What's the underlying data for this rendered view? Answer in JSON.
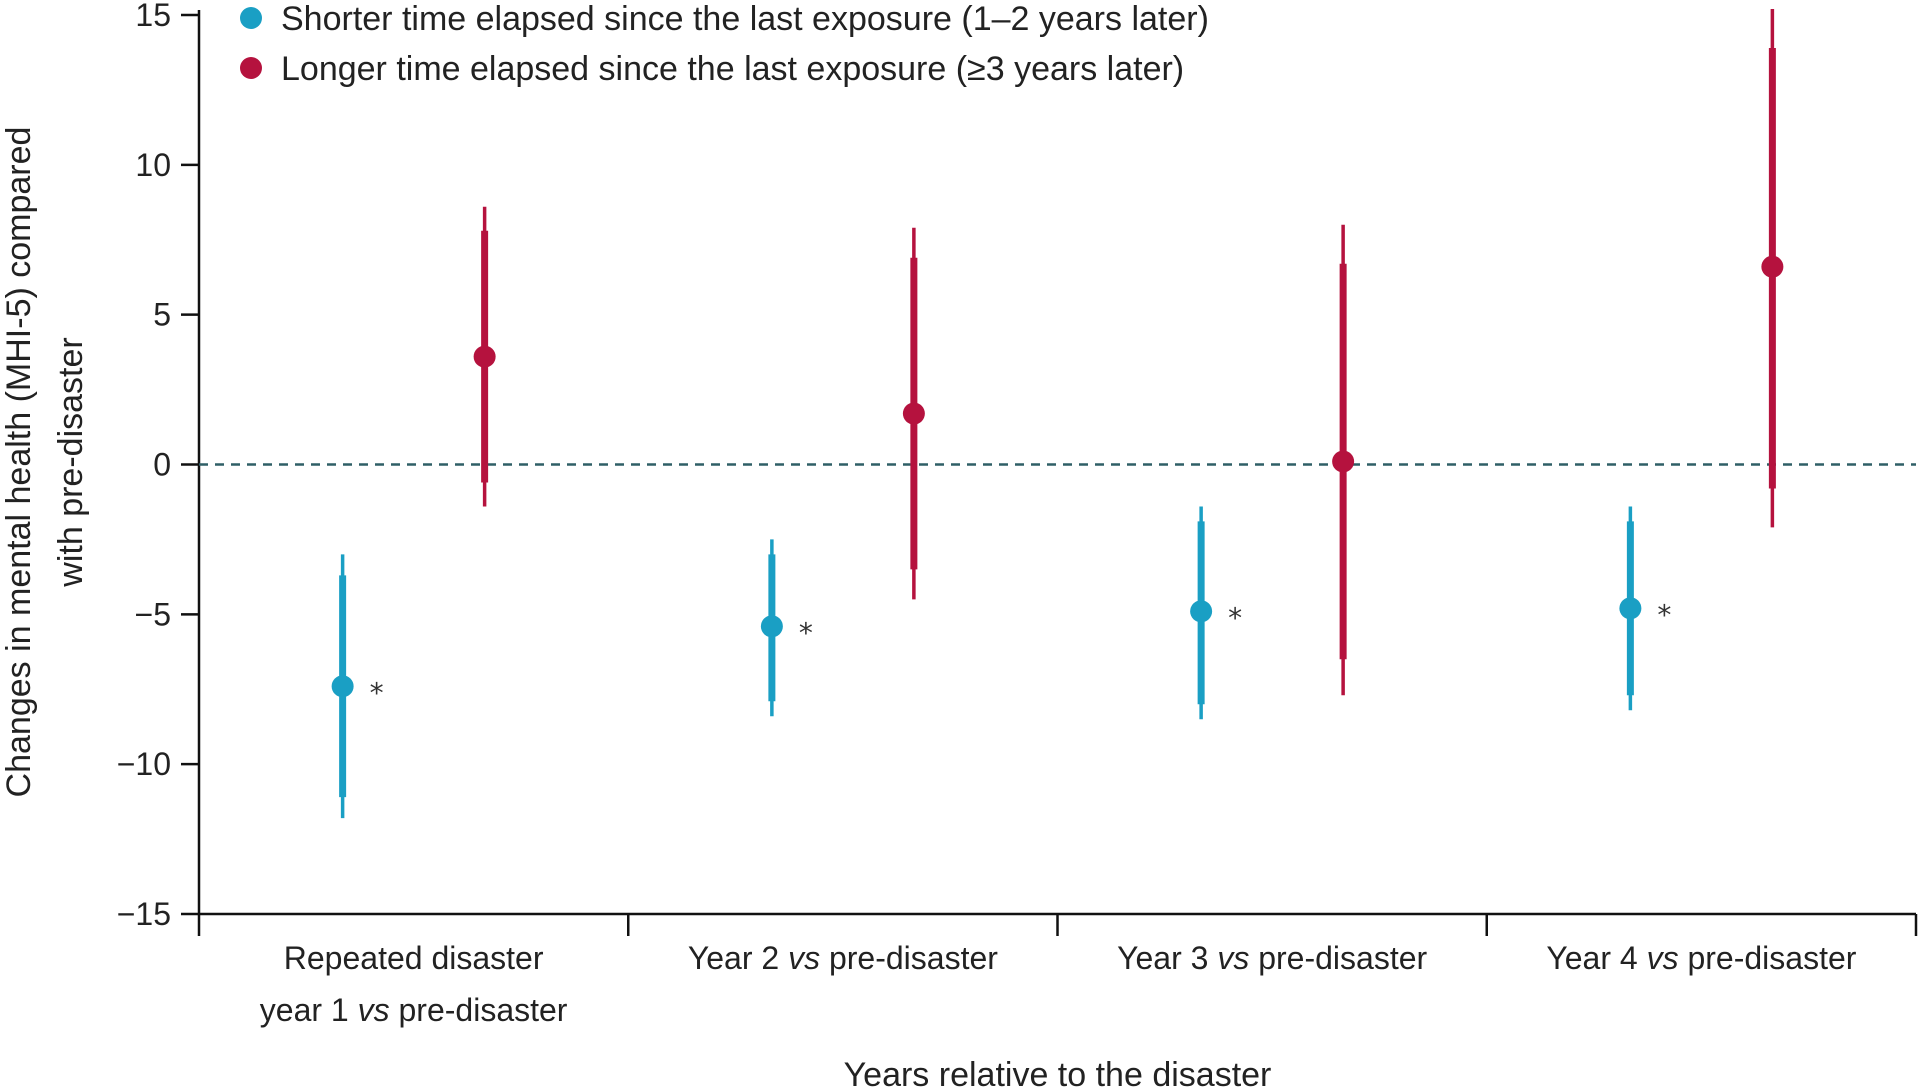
{
  "chart_data": {
    "type": "scatter",
    "title": "",
    "xlabel": "Years relative to the disaster",
    "ylabel_lines": [
      "Changes in mental health (MHI-5) compared",
      "with pre-disaster"
    ],
    "ylim": [
      -15,
      15
    ],
    "yticks": [
      15,
      10,
      5,
      0,
      -5,
      -10,
      -15
    ],
    "ytick_labels": [
      "15",
      "10",
      "5",
      "0",
      "−5",
      "−10",
      "−15"
    ],
    "reference_line": 0,
    "categories": [
      [
        "Repeated disaster",
        "year 1 vs pre-disaster"
      ],
      [
        "Year 2 vs pre-disaster"
      ],
      [
        "Year 3 vs pre-disaster"
      ],
      [
        "Year 4 vs pre-disaster"
      ]
    ],
    "legend_position": "top-left",
    "series": [
      {
        "name": "Shorter time elapsed since the last exposure (1–2 years later)",
        "color": "#1a9fc4",
        "values": [
          -7.4,
          -5.4,
          -4.9,
          -4.8
        ],
        "ci_inner": [
          [
            -11.1,
            -3.7
          ],
          [
            -7.9,
            -3.0
          ],
          [
            -8.0,
            -1.9
          ],
          [
            -7.7,
            -1.9
          ]
        ],
        "ci_outer": [
          [
            -11.8,
            -3.0
          ],
          [
            -8.4,
            -2.5
          ],
          [
            -8.5,
            -1.4
          ],
          [
            -8.2,
            -1.4
          ]
        ],
        "significance": [
          "*",
          "*",
          "*",
          "*"
        ]
      },
      {
        "name": "Longer time elapsed since the last exposure (≥3 years later)",
        "color": "#b5123e",
        "values": [
          3.6,
          1.7,
          0.1,
          6.6
        ],
        "ci_inner": [
          [
            -0.6,
            7.8
          ],
          [
            -3.5,
            6.9
          ],
          [
            -6.5,
            6.7
          ],
          [
            -0.8,
            13.9
          ]
        ],
        "ci_outer": [
          [
            -1.4,
            8.6
          ],
          [
            -4.5,
            7.9
          ],
          [
            -7.7,
            8.0
          ],
          [
            -2.1,
            15.2
          ]
        ],
        "significance": [
          "",
          "",
          "",
          ""
        ]
      }
    ]
  }
}
